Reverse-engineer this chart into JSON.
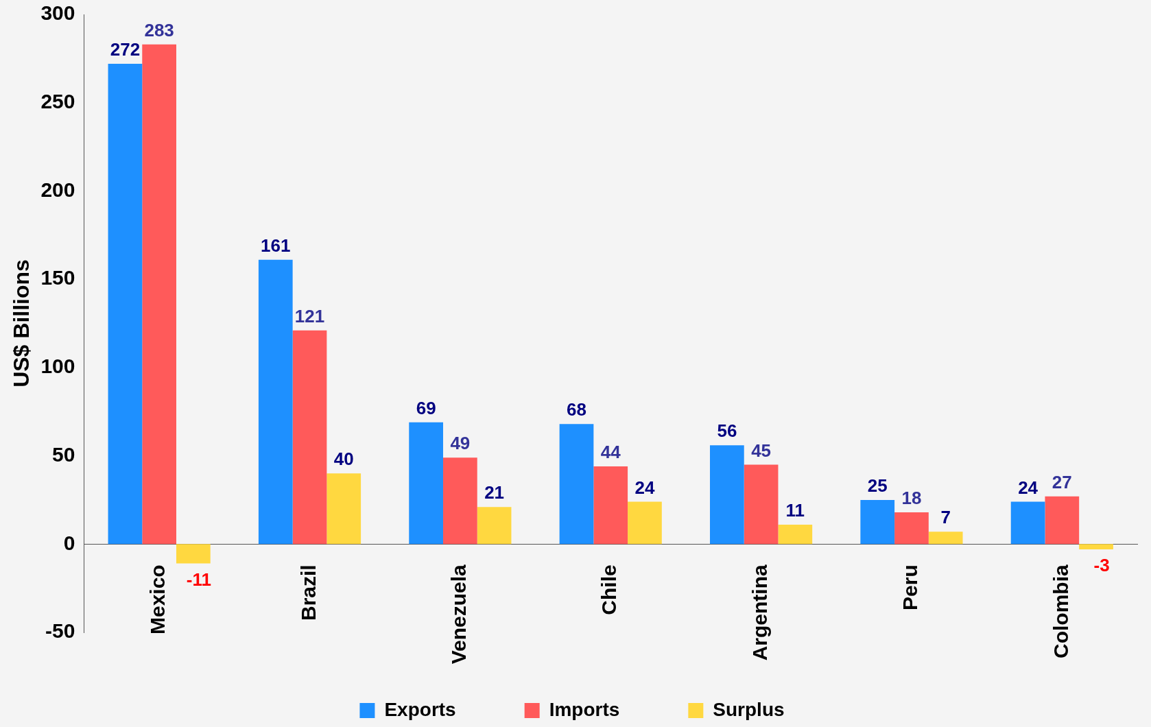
{
  "chart_data": {
    "type": "bar",
    "ylabel": "US$ Billions",
    "categories": [
      "Mexico",
      "Brazil",
      "Venezuela",
      "Chile",
      "Argentina",
      "Peru",
      "Colombia"
    ],
    "series": [
      {
        "name": "Exports",
        "color": "#1e90ff",
        "values": [
          272,
          161,
          69,
          68,
          56,
          25,
          24
        ]
      },
      {
        "name": "Imports",
        "color": "#ff5a5a",
        "values": [
          283,
          121,
          49,
          44,
          45,
          18,
          27
        ]
      },
      {
        "name": "Surplus",
        "color": "#ffd840",
        "values": [
          -11,
          40,
          21,
          24,
          11,
          7,
          -3
        ]
      }
    ],
    "ylim": [
      -50,
      300
    ],
    "yticks": [
      -50,
      0,
      50,
      100,
      150,
      200,
      250,
      300
    ],
    "grid": false,
    "legend": "bottom",
    "data_labels": true
  }
}
